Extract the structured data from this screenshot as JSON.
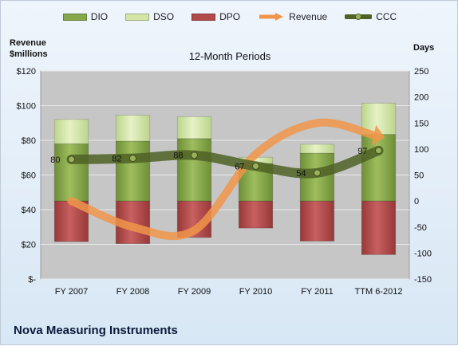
{
  "legend": {
    "dio": "DIO",
    "dso": "DSO",
    "dpo": "DPO",
    "revenue": "Revenue",
    "ccc": "CCC"
  },
  "left_axis_title": [
    "Revenue",
    "$millions"
  ],
  "right_axis_title": "Days",
  "subtitle": "12-Month Periods",
  "company": "Nova Measuring Instruments",
  "colors": {
    "dio": "#86a84a",
    "dso": "#d3e6a6",
    "dpo": "#b24a4a",
    "revenue": "#f0954a",
    "ccc": "#4f6226"
  },
  "chart_data": {
    "type": "bar",
    "categories": [
      "FY 2007",
      "FY 2008",
      "FY 2009",
      "FY 2010",
      "FY 2011",
      "TTM 6-2012"
    ],
    "left_axis": {
      "ylim": [
        0,
        120
      ],
      "ticks": [
        0,
        20,
        40,
        60,
        80,
        100,
        120
      ],
      "tick_labels": [
        "$-",
        "$20",
        "$40",
        "$60",
        "$80",
        "$100",
        "$120"
      ]
    },
    "right_axis": {
      "ylim": [
        -150,
        250
      ],
      "ticks": [
        -150,
        -100,
        -50,
        0,
        50,
        100,
        150,
        200,
        250
      ]
    },
    "series": [
      {
        "name": "DIO",
        "axis": "right",
        "values": [
          110,
          115,
          120,
          72,
          92,
          128
        ]
      },
      {
        "name": "DSO",
        "axis": "right",
        "values": [
          47,
          50,
          42,
          12,
          17,
          60
        ]
      },
      {
        "name": "DPO",
        "axis": "right",
        "values": [
          -78,
          -82,
          -70,
          -52,
          -77,
          -103
        ]
      },
      {
        "name": "Revenue",
        "axis": "left",
        "values": [
          45,
          30,
          28,
          72,
          90,
          83
        ]
      },
      {
        "name": "CCC",
        "axis": "right",
        "values": [
          80,
          82,
          88,
          67,
          54,
          97
        ]
      }
    ],
    "data_labels": [
      "80",
      "82",
      "88",
      "67",
      "54",
      "97"
    ]
  }
}
